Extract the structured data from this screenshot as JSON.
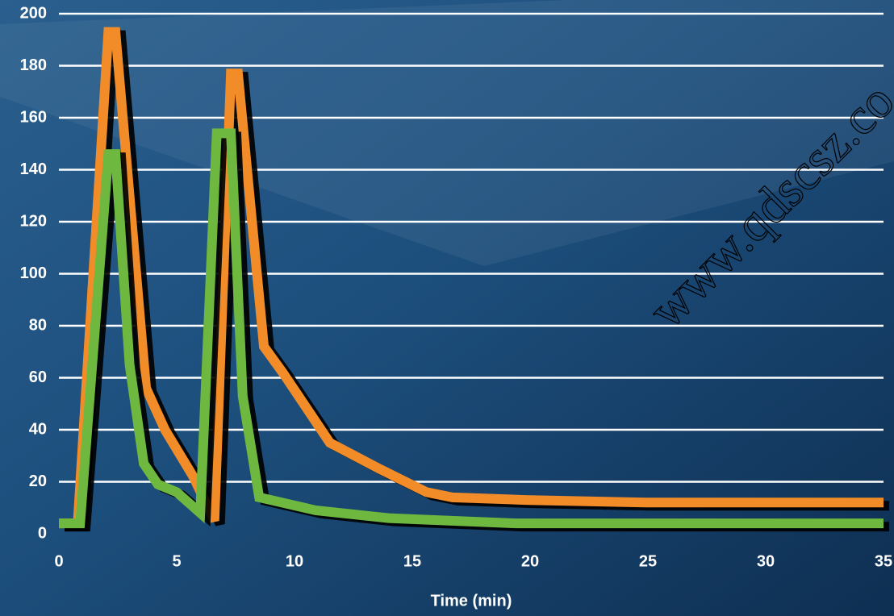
{
  "chart_data": {
    "type": "line",
    "x_label": "Time (min)",
    "watermark": "www.qdscsz.co",
    "xlim": [
      0,
      35
    ],
    "xticks": [
      0,
      5,
      10,
      15,
      20,
      25,
      30,
      35
    ],
    "ylim": [
      0,
      200
    ],
    "yticks": [
      0,
      20,
      40,
      60,
      80,
      100,
      120,
      140,
      160,
      180,
      200
    ],
    "grid": true,
    "series": [
      {
        "color": "#f28c28",
        "x": [
          0,
          0.8,
          2.1,
          2.4,
          3.7,
          4.5,
          5.7,
          6.6,
          7.3,
          7.6,
          8.7,
          9.5,
          11.5,
          13.6,
          15.6,
          16.7,
          19.8,
          24.9,
          35
        ],
        "values": [
          4,
          4,
          193,
          193,
          56,
          40,
          22,
          5,
          177,
          177,
          72,
          62,
          35,
          25,
          16,
          14,
          13,
          12,
          12
        ]
      },
      {
        "color": "#6fb83f",
        "x": [
          0,
          0.9,
          2.1,
          2.4,
          3,
          3.6,
          4.2,
          5,
          6,
          6.7,
          7.3,
          7.8,
          8.5,
          10.9,
          14,
          19.4,
          35
        ],
        "values": [
          4,
          4,
          146,
          146,
          65,
          27,
          19,
          16,
          8,
          154,
          154,
          53,
          14,
          9,
          6,
          4,
          4
        ]
      }
    ]
  }
}
